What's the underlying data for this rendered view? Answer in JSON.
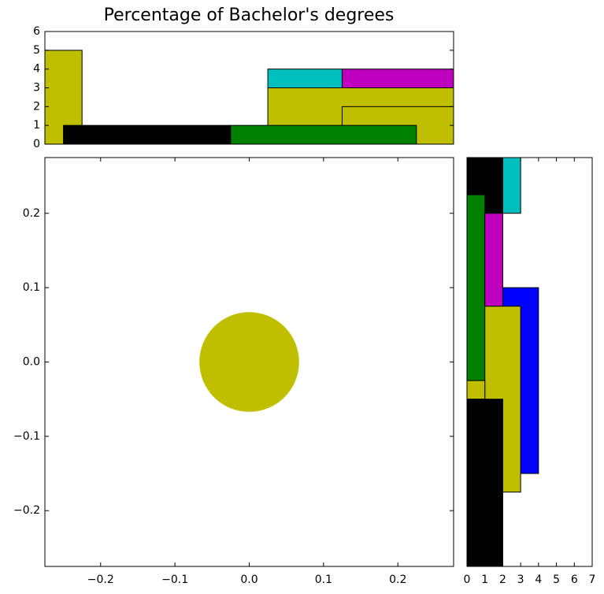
{
  "chart_data": [
    {
      "type": "scatter",
      "title": "Percentage of Bachelor's degrees",
      "x": [
        0
      ],
      "values": [
        0
      ],
      "color": "#bfbf00",
      "xlim": [
        -0.275,
        0.275
      ],
      "ylim": [
        -0.275,
        0.275
      ],
      "xticks": [
        {
          "value": -0.2,
          "label": "−0.2"
        },
        {
          "value": -0.1,
          "label": "−0.1"
        },
        {
          "value": 0,
          "label": "0.0"
        },
        0.1,
        0.2
      ],
      "yticks": [
        {
          "value": -0.2,
          "label": "−0.2"
        },
        {
          "value": -0.1,
          "label": "−0.1"
        },
        {
          "value": 0,
          "label": "0.0"
        },
        0.1,
        0.2
      ]
    },
    {
      "type": "histogram",
      "orientation": "vertical",
      "xlim": [
        -0.275,
        0.275
      ],
      "ylim": [
        0,
        6
      ],
      "yticks": [
        0,
        1,
        2,
        3,
        4,
        5,
        6
      ],
      "patches": [
        {
          "color": "#bfbf00",
          "x": [
            -0.275,
            -0.225
          ],
          "y": [
            0,
            5
          ]
        },
        {
          "color": "#bfbf00",
          "x": [
            0.025,
            0.275
          ],
          "y": [
            0,
            3
          ]
        },
        {
          "color": "#bfbf00",
          "x": [
            0.125,
            0.275
          ],
          "y": [
            0,
            2
          ]
        },
        {
          "color": "#000000",
          "x": [
            -0.25,
            -0.025
          ],
          "y": [
            0,
            1
          ]
        },
        {
          "color": "#008000",
          "x": [
            -0.025,
            0.225
          ],
          "y": [
            0,
            1
          ]
        },
        {
          "color": "#00bfbf",
          "x": [
            0.025,
            0.125
          ],
          "y": [
            3,
            4
          ]
        },
        {
          "color": "#bf00bf",
          "x": [
            0.125,
            0.275
          ],
          "y": [
            3,
            4
          ]
        }
      ]
    },
    {
      "type": "histogram",
      "orientation": "horizontal",
      "xlim": [
        0,
        7
      ],
      "ylim": [
        -0.275,
        0.275
      ],
      "xticks": [
        0,
        1,
        2,
        3,
        4,
        5,
        6,
        7
      ],
      "patches": [
        {
          "color": "#000000",
          "x": [
            0,
            2
          ],
          "y": [
            0.2,
            0.275
          ]
        },
        {
          "color": "#00bfbf",
          "x": [
            2,
            3
          ],
          "y": [
            0.2,
            0.275
          ]
        },
        {
          "color": "#008000",
          "x": [
            0,
            1
          ],
          "y": [
            -0.025,
            0.225
          ]
        },
        {
          "color": "#bf00bf",
          "x": [
            1,
            2
          ],
          "y": [
            0.075,
            0.2
          ]
        },
        {
          "color": "#0000ff",
          "x": [
            2,
            4
          ],
          "y": [
            -0.15,
            0.1
          ]
        },
        {
          "color": "#bfbf00",
          "x": [
            1,
            3
          ],
          "y": [
            -0.175,
            0.075
          ]
        },
        {
          "color": "#bfbf00",
          "x": [
            0,
            1
          ],
          "y": [
            -0.05,
            -0.025
          ]
        },
        {
          "color": "#000000",
          "x": [
            0,
            2
          ],
          "y": [
            -0.275,
            -0.05
          ]
        }
      ]
    }
  ]
}
